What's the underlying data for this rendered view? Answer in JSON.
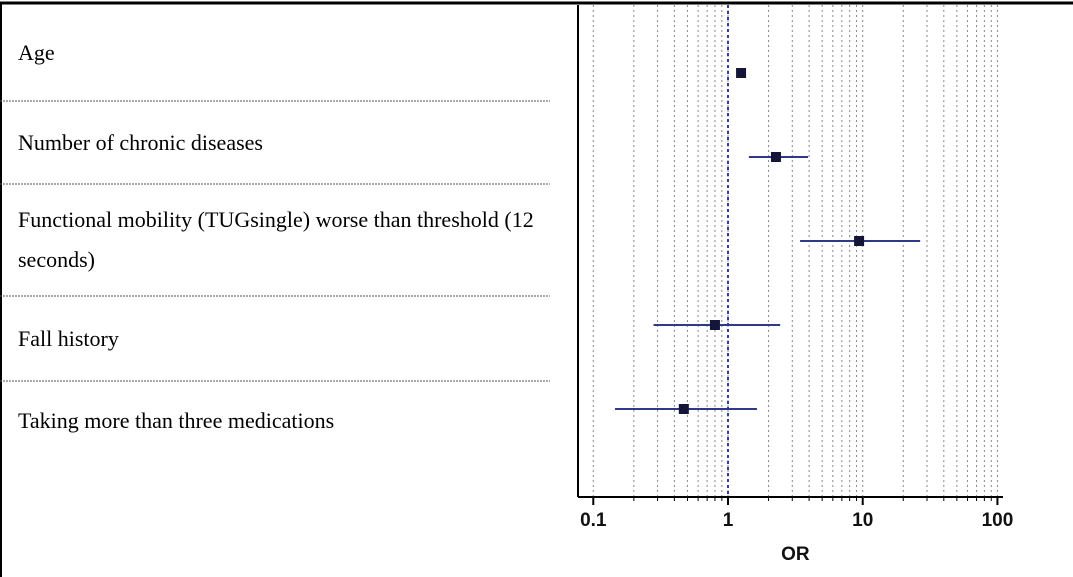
{
  "chart_data": {
    "type": "forest",
    "categories": [
      "Age",
      "Number of chronic diseases",
      "Functional mobility (TUGsingle) worse than threshold (12 seconds)",
      "Fall history",
      "Taking more than three medications"
    ],
    "values": [
      1.25,
      2.27,
      9.4,
      0.8,
      0.47
    ],
    "lower": [
      null,
      1.43,
      3.43,
      0.28,
      0.145
    ],
    "upper": [
      null,
      3.93,
      26.7,
      2.44,
      1.64
    ],
    "x_label": "OR",
    "xscale": "log",
    "xlim": [
      0.077,
      110
    ],
    "xticks": [
      0.1,
      1,
      10,
      100
    ],
    "xminorticks": [
      0.1,
      0.2,
      0.3,
      0.4,
      0.5,
      0.6,
      0.7,
      0.8,
      0.9,
      1,
      2,
      3,
      4,
      5,
      6,
      7,
      8,
      9,
      10,
      20,
      30,
      40,
      50,
      60,
      70,
      80,
      90,
      100
    ],
    "reference_line": 1,
    "grid": true,
    "color": "#2e3a87",
    "marker_color": "#15153a",
    "grid_color": "#888888",
    "reference_color": "#3a3aa0"
  }
}
